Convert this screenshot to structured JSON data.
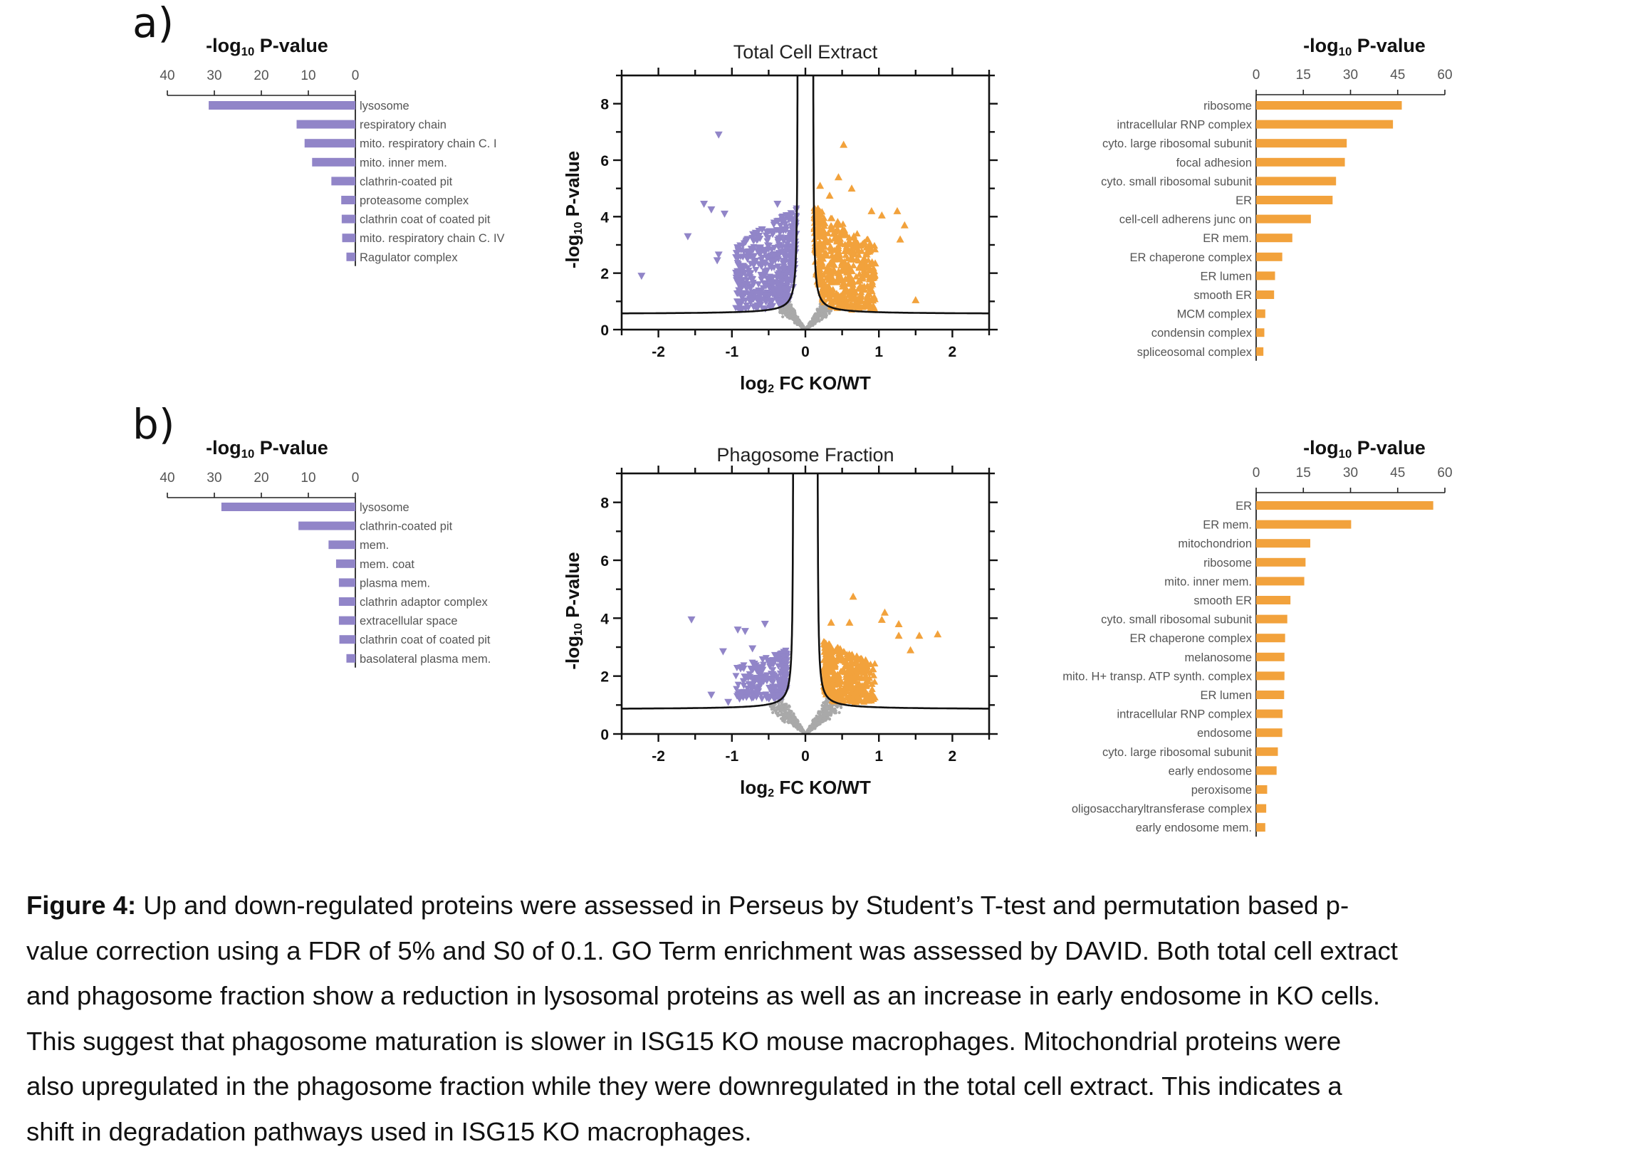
{
  "figure": {
    "caption_lead": "Figure 4:",
    "caption_lines": [
      " Up and down-regulated proteins were assessed in Perseus by Student’s T-test and permutation based p-",
      "value correction using a FDR of 5% and S0 of 0.1. GO Term enrichment was assessed by DAVID. Both total cell extract",
      "and phagosome fraction show a reduction in lysosomal proteins as well as an increase in early endosome in KO cells.",
      "This suggest that phagosome maturation is slower in ISG15 KO mouse macrophages. Mitochondrial proteins were",
      "also upregulated in the phagosome fraction while they were downregulated in the total cell extract. This indicates a",
      "shift in degradation pathways used in ISG15 KO macrophages."
    ],
    "colors": {
      "down": "#9185c8",
      "up": "#f2a23c",
      "ns": "#a9a9a9",
      "axis": "#111111"
    }
  },
  "chart_data": [
    {
      "id": "a-down",
      "panel": "a)",
      "type": "bar",
      "orientation": "horizontal-reversed",
      "title": "-log10 P-value",
      "title_main": "-log",
      "title_sub": "10",
      "title_tail": " P-value",
      "xlim": [
        0,
        40
      ],
      "ticks": [
        40,
        30,
        20,
        10,
        0
      ],
      "categories": [
        "lysosome",
        "respiratory chain",
        "mito. respiratory chain C. I",
        "mito. inner mem.",
        "clathrin-coated pit",
        "proteasome complex",
        "clathrin coat of coated pit",
        "mito. respiratory chain C. IV",
        "Ragulator complex"
      ],
      "values": [
        31.2,
        12.5,
        10.8,
        9.2,
        5.1,
        3.0,
        2.9,
        2.8,
        1.9
      ],
      "color": "#9185c8"
    },
    {
      "id": "a-volcano",
      "panel": "a)",
      "type": "scatter",
      "title": "Total Cell Extract",
      "xlabel": "log2 FC KO/WT",
      "xlabel_main": "log",
      "xlabel_sub": "2",
      "xlabel_tail": " FC KO/WT",
      "ylabel": "-log10 P-value",
      "ylabel_main": "-log",
      "ylabel_sub": "10",
      "ylabel_tail": " P-value",
      "xlim": [
        -2.5,
        2.5
      ],
      "ylim": [
        0,
        9
      ],
      "xticks": [
        -2,
        -1,
        0,
        1,
        2
      ],
      "yticks": [
        0,
        2,
        4,
        6,
        8
      ],
      "threshold": {
        "s0": 0.1,
        "asymptote_x": 0.1,
        "asymptote_y": 0.55
      },
      "series": [
        {
          "name": "down-regulated",
          "marker": "triangle-down",
          "color": "#9185c8",
          "cloud": {
            "n": 520,
            "x_range": [
              -0.95,
              -0.12
            ],
            "y_range": [
              0.7,
              4.3
            ]
          },
          "highlight_points": [
            [
              -2.23,
              1.9
            ],
            [
              -1.18,
              6.9
            ],
            [
              -1.6,
              3.3
            ],
            [
              -1.38,
              4.45
            ],
            [
              -1.28,
              4.25
            ],
            [
              -1.1,
              4.1
            ],
            [
              -1.18,
              2.65
            ],
            [
              -1.2,
              2.45
            ],
            [
              -0.93,
              1.9
            ],
            [
              -0.87,
              1.55
            ],
            [
              -0.64,
              1.1
            ],
            [
              -0.38,
              4.45
            ]
          ]
        },
        {
          "name": "up-regulated",
          "marker": "triangle-up",
          "color": "#f2a23c",
          "cloud": {
            "n": 560,
            "x_range": [
              0.12,
              0.95
            ],
            "y_range": [
              0.7,
              4.4
            ]
          },
          "highlight_points": [
            [
              0.52,
              6.55
            ],
            [
              0.45,
              5.4
            ],
            [
              0.63,
              5.0
            ],
            [
              0.2,
              5.1
            ],
            [
              0.33,
              4.75
            ],
            [
              1.25,
              4.2
            ],
            [
              1.35,
              3.7
            ],
            [
              1.29,
              3.2
            ],
            [
              1.5,
              1.05
            ],
            [
              0.9,
              1.05
            ],
            [
              1.04,
              4.05
            ],
            [
              0.9,
              4.2
            ],
            [
              0.95,
              2.35
            ],
            [
              0.92,
              2.0
            ]
          ]
        },
        {
          "name": "not significant",
          "marker": "dot",
          "color": "#a9a9a9",
          "cloud": {
            "n": 650,
            "x_range": [
              -0.35,
              0.35
            ],
            "y_range": [
              0,
              1.9
            ]
          }
        }
      ]
    },
    {
      "id": "a-up",
      "panel": "a)",
      "type": "bar",
      "orientation": "horizontal",
      "title": "-log10 P-value",
      "title_main": "-log",
      "title_sub": "10",
      "title_tail": " P-value",
      "xlim": [
        0,
        60
      ],
      "ticks": [
        0,
        15,
        30,
        45,
        60
      ],
      "categories": [
        "ribosome",
        "intracellular RNP complex",
        "cyto. large ribosomal subunit",
        "focal adhesion",
        "cyto. small ribosomal subunit",
        "ER",
        "cell-cell adherens junc  on",
        "ER mem.",
        "ER chaperone complex",
        "ER lumen",
        "smooth ER",
        "MCM complex",
        "condensin complex",
        "spliceosomal complex"
      ],
      "values": [
        46.3,
        43.5,
        28.8,
        28.2,
        25.4,
        24.3,
        17.4,
        11.5,
        8.3,
        6.0,
        5.7,
        2.9,
        2.6,
        2.3
      ],
      "color": "#f2a23c"
    },
    {
      "id": "b-down",
      "panel": "b)",
      "type": "bar",
      "orientation": "horizontal-reversed",
      "title": "-log10 P-value",
      "title_main": "-log",
      "title_sub": "10",
      "title_tail": " P-value",
      "xlim": [
        0,
        40
      ],
      "ticks": [
        40,
        30,
        20,
        10,
        0
      ],
      "categories": [
        "lysosome",
        "clathrin-coated pit",
        "mem.",
        "mem. coat",
        "plasma mem.",
        "clathrin adaptor complex",
        "extracellular space",
        "clathrin coat of coated pit",
        "basolateral plasma mem."
      ],
      "values": [
        28.5,
        12.1,
        5.7,
        4.1,
        3.5,
        3.5,
        3.5,
        3.4,
        1.9
      ],
      "color": "#9185c8"
    },
    {
      "id": "b-volcano",
      "panel": "b)",
      "type": "scatter",
      "title": "Phagosome Fraction",
      "xlabel": "log2 FC KO/WT",
      "xlabel_main": "log",
      "xlabel_sub": "2",
      "xlabel_tail": " FC KO/WT",
      "ylabel": "-log10 P-value",
      "ylabel_main": "-log",
      "ylabel_sub": "10",
      "ylabel_tail": " P-value",
      "xlim": [
        -2.5,
        2.5
      ],
      "ylim": [
        0,
        9
      ],
      "xticks": [
        -2,
        -1,
        0,
        1,
        2
      ],
      "yticks": [
        0,
        2,
        4,
        6,
        8
      ],
      "threshold": {
        "s0": 0.1,
        "asymptote_x": 0.16,
        "asymptote_y": 0.85
      },
      "series": [
        {
          "name": "down-regulated",
          "marker": "triangle-down",
          "color": "#9185c8",
          "cloud": {
            "n": 230,
            "x_range": [
              -0.95,
              -0.25
            ],
            "y_range": [
              1.2,
              2.9
            ]
          },
          "highlight_points": [
            [
              -1.55,
              3.95
            ],
            [
              -0.55,
              3.8
            ],
            [
              -0.92,
              3.6
            ],
            [
              -0.82,
              3.55
            ],
            [
              -1.28,
              1.35
            ],
            [
              -1.05,
              1.1
            ],
            [
              -1.12,
              2.85
            ],
            [
              -0.72,
              2.95
            ]
          ]
        },
        {
          "name": "up-regulated",
          "marker": "triangle-up",
          "color": "#f2a23c",
          "cloud": {
            "n": 420,
            "x_range": [
              0.25,
              0.95
            ],
            "y_range": [
              1.1,
              3.2
            ]
          },
          "highlight_points": [
            [
              0.65,
              4.75
            ],
            [
              1.08,
              4.2
            ],
            [
              1.27,
              3.8
            ],
            [
              1.8,
              3.45
            ],
            [
              1.55,
              3.4
            ],
            [
              1.43,
              2.9
            ],
            [
              0.35,
              3.85
            ],
            [
              1.04,
              3.95
            ],
            [
              1.27,
              3.4
            ],
            [
              0.6,
              3.85
            ]
          ]
        },
        {
          "name": "not significant",
          "marker": "dot",
          "color": "#a9a9a9",
          "cloud": {
            "n": 700,
            "x_range": [
              -0.5,
              0.5
            ],
            "y_range": [
              0,
              2.0
            ]
          }
        }
      ]
    },
    {
      "id": "b-up",
      "panel": "b)",
      "type": "bar",
      "orientation": "horizontal",
      "title": "-log10 P-value",
      "title_main": "-log",
      "title_sub": "10",
      "title_tail": " P-value",
      "xlim": [
        0,
        60
      ],
      "ticks": [
        0,
        15,
        30,
        45,
        60
      ],
      "categories": [
        "ER",
        "ER mem.",
        "mitochondrion",
        "ribosome",
        "mito. inner mem.",
        "smooth ER",
        "cyto. small ribosomal subunit",
        "ER chaperone complex",
        "melanosome",
        "mito. H+ transp. ATP synth. complex",
        "ER lumen",
        "intracellular RNP complex",
        "endosome",
        "cyto. large ribosomal subunit",
        "early endosome",
        "peroxisome",
        "oligosaccharyltransferase complex",
        "early endosome mem."
      ],
      "values": [
        56.3,
        30.2,
        17.2,
        15.7,
        15.3,
        10.9,
        9.9,
        9.2,
        9.0,
        9.0,
        8.9,
        8.4,
        8.3,
        6.9,
        6.5,
        3.5,
        3.2,
        2.9
      ],
      "color": "#f2a23c"
    }
  ]
}
